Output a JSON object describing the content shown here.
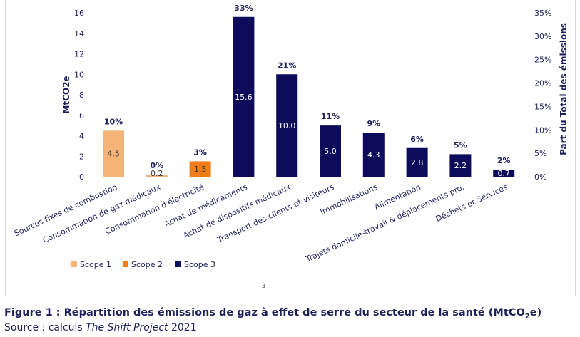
{
  "chart_data": {
    "type": "bar",
    "title": "",
    "ylabel": "MtCO2e",
    "y2label": "Part du Total des émissions",
    "ylim": [
      0,
      16
    ],
    "y_ticks": [
      "0",
      "2",
      "4",
      "6",
      "8",
      "10",
      "12",
      "14",
      "16"
    ],
    "y2lim": [
      0,
      0.35
    ],
    "y2_ticks": [
      "0%",
      "5%",
      "10%",
      "15%",
      "20%",
      "25%",
      "30%",
      "35%"
    ],
    "grid": false,
    "legend_position": "bottom-left",
    "categories": [
      "Sources fixes de combustion",
      "Consommation de gaz médicaux",
      "Consommation d'électricité",
      "Achat de médicaments",
      "Achat de dispositifs médicaux",
      "Transport des clients et visiteurs",
      "Immobilisations",
      "Alimentation",
      "Trajets domicile-travail & déplacements pro.",
      "Déchets et Services"
    ],
    "values": [
      4.5,
      0.2,
      1.5,
      15.6,
      10.0,
      5.0,
      4.3,
      2.8,
      2.2,
      0.7
    ],
    "value_labels": [
      "4.5",
      "0.2",
      "1.5",
      "15.6",
      "10.0",
      "5.0",
      "4.3",
      "2.8",
      "2.2",
      "0.7"
    ],
    "percent_labels": [
      "10%",
      "0%",
      "3%",
      "33%",
      "21%",
      "11%",
      "9%",
      "6%",
      "5%",
      "2%"
    ],
    "scopes": [
      "Scope 1",
      "Scope 1",
      "Scope 2",
      "Scope 3",
      "Scope 3",
      "Scope 3",
      "Scope 3",
      "Scope 3",
      "Scope 3",
      "Scope 3"
    ],
    "legend": [
      {
        "name": "Scope 1",
        "color": "#f4b478"
      },
      {
        "name": "Scope 2",
        "color": "#f07d14"
      },
      {
        "name": "Scope 3",
        "color": "#0c0c5a"
      }
    ]
  },
  "page_number": "3",
  "caption": {
    "prefix": "Figure 1 : Répartition des émissions de gaz à effet de serre du secteur de la santé (MtCO",
    "sub": "2",
    "suffix": "e)"
  },
  "source": {
    "prefix": "Source : calculs ",
    "italic": "The Shift Project",
    "suffix": " 2021"
  }
}
